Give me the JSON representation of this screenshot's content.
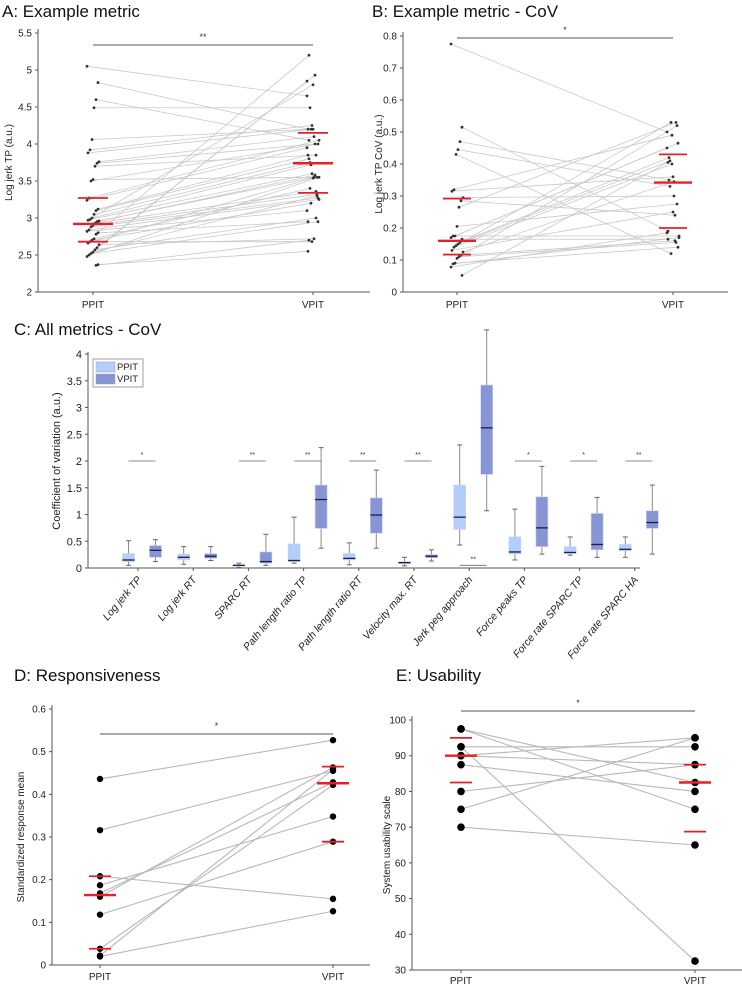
{
  "chart_data": [
    {
      "id": "A",
      "type": "scatter",
      "title": "A: Example metric",
      "ylabel": "Log jerk TP (a.u.)",
      "xlabel": "",
      "categories": [
        "PPIT",
        "VPIT"
      ],
      "ylim": [
        2,
        5.5
      ],
      "yticks": [
        2,
        2.5,
        3,
        3.5,
        4,
        4.5,
        5,
        5.5
      ],
      "significance": "**",
      "pairs": [
        [
          5.05,
          4.65
        ],
        [
          4.83,
          4.2
        ],
        [
          4.6,
          4.05
        ],
        [
          4.49,
          4.49
        ],
        [
          4.06,
          4.2
        ],
        [
          3.92,
          4.25
        ],
        [
          3.88,
          4.2
        ],
        [
          3.76,
          4.1
        ],
        [
          3.74,
          4.0
        ],
        [
          3.7,
          3.85
        ],
        [
          3.52,
          3.55
        ],
        [
          3.5,
          4.0
        ],
        [
          3.27,
          4.05
        ],
        [
          3.24,
          3.95
        ],
        [
          3.12,
          3.85
        ],
        [
          3.1,
          3.8
        ],
        [
          3.05,
          3.75
        ],
        [
          3.0,
          3.72
        ],
        [
          2.98,
          3.6
        ],
        [
          2.97,
          4.8
        ],
        [
          2.96,
          3.55
        ],
        [
          2.95,
          3.58
        ],
        [
          2.93,
          3.36
        ],
        [
          2.9,
          3.32
        ],
        [
          2.88,
          3.27
        ],
        [
          2.84,
          3.25
        ],
        [
          2.82,
          3.1
        ],
        [
          2.8,
          2.95
        ],
        [
          2.78,
          5.2
        ],
        [
          2.72,
          3.4
        ],
        [
          2.7,
          3.2
        ],
        [
          2.68,
          2.68
        ],
        [
          2.66,
          3.54
        ],
        [
          2.64,
          2.72
        ],
        [
          2.6,
          4.93
        ],
        [
          2.57,
          3.0
        ],
        [
          2.54,
          3.3
        ],
        [
          2.52,
          2.95
        ],
        [
          2.5,
          3.55
        ],
        [
          2.48,
          4.85
        ],
        [
          2.37,
          2.55
        ],
        [
          2.36,
          2.7
        ]
      ],
      "summary_lines": {
        "PPIT": {
          "upper_quartile": 3.27,
          "median": 2.92,
          "lower_quartile": 2.68
        },
        "VPIT": {
          "upper_quartile": 4.15,
          "median": 3.74,
          "lower_quartile": 3.34
        }
      }
    },
    {
      "id": "B",
      "type": "scatter",
      "title": "B: Example metric - CoV",
      "ylabel": "Log jerk TP CoV (a.u.)",
      "xlabel": "",
      "categories": [
        "PPIT",
        "VPIT"
      ],
      "ylim": [
        0,
        0.8
      ],
      "yticks": [
        0,
        0.1,
        0.2,
        0.3,
        0.4,
        0.5,
        0.6,
        0.7,
        0.8
      ],
      "significance": "*",
      "pairs": [
        [
          0.775,
          0.5
        ],
        [
          0.515,
          0.19
        ],
        [
          0.47,
          0.35
        ],
        [
          0.445,
          0.33
        ],
        [
          0.43,
          0.12
        ],
        [
          0.32,
          0.49
        ],
        [
          0.315,
          0.36
        ],
        [
          0.295,
          0.3
        ],
        [
          0.285,
          0.24
        ],
        [
          0.265,
          0.53
        ],
        [
          0.205,
          0.275
        ],
        [
          0.175,
          0.465
        ],
        [
          0.175,
          0.175
        ],
        [
          0.17,
          0.45
        ],
        [
          0.165,
          0.165
        ],
        [
          0.155,
          0.42
        ],
        [
          0.15,
          0.41
        ],
        [
          0.145,
          0.53
        ],
        [
          0.14,
          0.4
        ],
        [
          0.13,
          0.25
        ],
        [
          0.125,
          0.345
        ],
        [
          0.115,
          0.16
        ],
        [
          0.11,
          0.155
        ],
        [
          0.105,
          0.52
        ],
        [
          0.09,
          0.14
        ],
        [
          0.088,
          0.17
        ],
        [
          0.078,
          0.185
        ],
        [
          0.052,
          0.405
        ]
      ],
      "summary_lines": {
        "PPIT": {
          "upper_quartile": 0.292,
          "median": 0.16,
          "lower_quartile": 0.117
        },
        "VPIT": {
          "upper_quartile": 0.43,
          "median": 0.342,
          "lower_quartile": 0.2
        }
      }
    },
    {
      "id": "C",
      "type": "bar",
      "subtype": "boxplot",
      "title": "C: All metrics - CoV",
      "ylabel": "Coefficient of variation (a.u.)",
      "xlabel": "",
      "ylim": [
        0,
        4
      ],
      "yticks": [
        0,
        0.5,
        1,
        1.5,
        2,
        2.5,
        3,
        3.5,
        4
      ],
      "legend": {
        "position": "top-left",
        "entries": [
          {
            "name": "PPIT",
            "color": "#b4cdfb"
          },
          {
            "name": "VPIT",
            "color": "#8795d6"
          }
        ]
      },
      "categories": [
        "Log jerk TP",
        "Log jerk RT",
        "SPARC RT",
        "Path length ratio TP",
        "Path length ratio RT",
        "Velocity max. RT",
        "Jerk peg approach",
        "Force peaks TP",
        "Force rate SPARC TP",
        "Force rate SPARC HA"
      ],
      "significance": [
        "*",
        "",
        "**",
        "**",
        "**",
        "**",
        "**",
        "*",
        "*",
        "**"
      ],
      "significance_y": [
        2.0,
        null,
        2.0,
        2.0,
        2.0,
        2.0,
        0.05,
        2.0,
        2.0,
        2.0
      ],
      "series": [
        {
          "name": "PPIT",
          "boxes": [
            {
              "min": 0.05,
              "q1": 0.12,
              "median": 0.15,
              "q3": 0.27,
              "max": 0.51
            },
            {
              "min": 0.07,
              "q1": 0.15,
              "median": 0.2,
              "q3": 0.26,
              "max": 0.4
            },
            {
              "min": 0.01,
              "q1": 0.04,
              "median": 0.05,
              "q3": 0.06,
              "max": 0.09
            },
            {
              "min": 0.09,
              "q1": 0.12,
              "median": 0.14,
              "q3": 0.45,
              "max": 0.95
            },
            {
              "min": 0.06,
              "q1": 0.15,
              "median": 0.18,
              "q3": 0.27,
              "max": 0.47
            },
            {
              "min": 0.04,
              "q1": 0.08,
              "median": 0.1,
              "q3": 0.12,
              "max": 0.2
            },
            {
              "min": 0.43,
              "q1": 0.72,
              "median": 0.95,
              "q3": 1.55,
              "max": 2.3
            },
            {
              "min": 0.15,
              "q1": 0.26,
              "median": 0.3,
              "q3": 0.58,
              "max": 1.1
            },
            {
              "min": 0.24,
              "q1": 0.27,
              "median": 0.29,
              "q3": 0.4,
              "max": 0.58
            },
            {
              "min": 0.2,
              "q1": 0.32,
              "median": 0.35,
              "q3": 0.44,
              "max": 0.58
            }
          ]
        },
        {
          "name": "VPIT",
          "boxes": [
            {
              "min": 0.12,
              "q1": 0.2,
              "median": 0.33,
              "q3": 0.42,
              "max": 0.53
            },
            {
              "min": 0.14,
              "q1": 0.18,
              "median": 0.22,
              "q3": 0.27,
              "max": 0.4
            },
            {
              "min": 0.05,
              "q1": 0.09,
              "median": 0.12,
              "q3": 0.3,
              "max": 0.63
            },
            {
              "min": 0.37,
              "q1": 0.74,
              "median": 1.28,
              "q3": 1.55,
              "max": 2.25
            },
            {
              "min": 0.37,
              "q1": 0.65,
              "median": 0.99,
              "q3": 1.31,
              "max": 1.83
            },
            {
              "min": 0.13,
              "q1": 0.19,
              "median": 0.22,
              "q3": 0.25,
              "max": 0.34
            },
            {
              "min": 1.07,
              "q1": 1.75,
              "median": 2.62,
              "q3": 3.42,
              "max": 4.45
            },
            {
              "min": 0.26,
              "q1": 0.4,
              "median": 0.75,
              "q3": 1.33,
              "max": 1.9
            },
            {
              "min": 0.2,
              "q1": 0.34,
              "median": 0.44,
              "q3": 1.02,
              "max": 1.32
            },
            {
              "min": 0.26,
              "q1": 0.74,
              "median": 0.85,
              "q3": 1.07,
              "max": 1.55
            }
          ]
        }
      ]
    },
    {
      "id": "D",
      "type": "scatter",
      "title": "D: Responsiveness",
      "ylabel": "Standardized response mean",
      "xlabel": "",
      "categories": [
        "PPIT",
        "VPIT"
      ],
      "ylim": [
        0,
        0.6
      ],
      "yticks": [
        0,
        0.1,
        0.2,
        0.3,
        0.4,
        0.5,
        0.6
      ],
      "significance": "*",
      "pairs": [
        [
          0.436,
          0.527
        ],
        [
          0.316,
          0.455
        ],
        [
          0.208,
          0.155
        ],
        [
          0.187,
          0.348
        ],
        [
          0.168,
          0.428
        ],
        [
          0.16,
          0.463
        ],
        [
          0.118,
          0.289
        ],
        [
          0.038,
          0.422
        ],
        [
          0.022,
          0.458
        ],
        [
          0.02,
          0.126
        ]
      ],
      "summary_lines": {
        "PPIT": {
          "upper_quartile": 0.208,
          "median": 0.164,
          "lower_quartile": 0.038
        },
        "VPIT": {
          "upper_quartile": 0.465,
          "median": 0.426,
          "lower_quartile": 0.289
        }
      }
    },
    {
      "id": "E",
      "type": "scatter",
      "title": "E: Usability",
      "ylabel": "System usability scale",
      "xlabel": "",
      "categories": [
        "PPIT",
        "VPIT"
      ],
      "ylim": [
        30,
        100
      ],
      "yticks": [
        30,
        40,
        50,
        60,
        70,
        80,
        90,
        100
      ],
      "significance": "*",
      "pairs": [
        [
          97.5,
          82.5
        ],
        [
          97.5,
          75
        ],
        [
          92.5,
          92.5
        ],
        [
          92.5,
          32.5
        ],
        [
          90,
          95
        ],
        [
          90,
          87.5
        ],
        [
          87.5,
          80
        ],
        [
          80,
          87.5
        ],
        [
          75,
          95
        ],
        [
          70,
          65
        ]
      ],
      "summary_lines": {
        "PPIT": {
          "upper_quartile": 95,
          "median": 90,
          "lower_quartile": 82.5
        },
        "VPIT": {
          "upper_quartile": 87.5,
          "median": 82.5,
          "lower_quartile": 68.75
        }
      }
    }
  ],
  "colors": {
    "ppit_box": "#b4cdfb",
    "vpit_box": "#8795d6",
    "median_line": "#e5202a",
    "pair_line": "#b8b8b8",
    "point": "#000000"
  }
}
